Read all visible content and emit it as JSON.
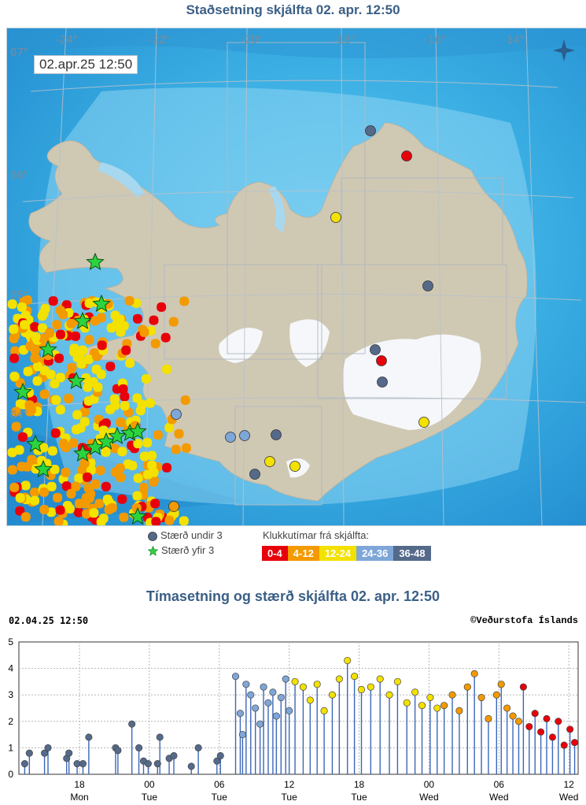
{
  "map": {
    "title": "Staðsetning skjálfta   02. apr. 12:50",
    "timestamp": "02.apr.25  12:50",
    "lat_labels": [
      "67°",
      "66°",
      "65°",
      "64°"
    ],
    "lon_labels": [
      "-24°",
      "-22°",
      "-20°",
      "-18°",
      "-16°",
      "-14°"
    ],
    "icon": "compass-icon"
  },
  "legend": {
    "under3": "Stærð undir 3",
    "over3": "Stærð yfir 3",
    "bins_title": "Klukkutímar frá skjálfta:",
    "bins": [
      {
        "label": "0-4",
        "color": "#e8000b"
      },
      {
        "label": "4-12",
        "color": "#f39a00"
      },
      {
        "label": "12-24",
        "color": "#f3e100"
      },
      {
        "label": "24-36",
        "color": "#7ea6d8"
      },
      {
        "label": "36-48",
        "color": "#556a8a"
      }
    ]
  },
  "chart": {
    "title": "Tímasetning og stærð skjálfta   02. apr. 12:50",
    "stamp_left": "02.04.25 12:50",
    "stamp_right": "©Veðurstofa Íslands"
  },
  "chart_data": {
    "type": "scatter",
    "title": "Tímasetning og stærð skjálfta   02. apr. 12:50",
    "xlabel": "",
    "ylabel": "",
    "ylim": [
      0,
      5
    ],
    "yticks": [
      "0",
      "1",
      "2",
      "3",
      "4",
      "5"
    ],
    "xticks": [
      {
        "hour": 18,
        "top": "18",
        "bottom": "Mon"
      },
      {
        "hour": 24,
        "top": "00",
        "bottom": "Tue"
      },
      {
        "hour": 30,
        "top": "06",
        "bottom": "Tue"
      },
      {
        "hour": 36,
        "top": "12",
        "bottom": "Tue"
      },
      {
        "hour": 42,
        "top": "18",
        "bottom": "Tue"
      },
      {
        "hour": 48,
        "top": "00",
        "bottom": "Wed"
      },
      {
        "hour": 54,
        "top": "06",
        "bottom": "Wed"
      },
      {
        "hour": 60,
        "top": "12",
        "bottom": "Wed"
      }
    ],
    "xlim_hours": [
      12.8,
      60.8
    ],
    "series": [
      {
        "bin": "36-48",
        "color": "#556a8a",
        "points": [
          [
            13.3,
            0.4
          ],
          [
            13.7,
            0.8
          ],
          [
            15.0,
            0.8
          ],
          [
            15.3,
            1.0
          ],
          [
            16.9,
            0.6
          ],
          [
            17.1,
            0.8
          ],
          [
            17.8,
            0.4
          ],
          [
            18.3,
            0.4
          ],
          [
            18.8,
            1.4
          ],
          [
            21.1,
            1.0
          ],
          [
            21.3,
            0.9
          ],
          [
            22.5,
            1.9
          ],
          [
            23.1,
            1.0
          ],
          [
            23.5,
            0.5
          ],
          [
            23.9,
            0.4
          ],
          [
            24.7,
            0.4
          ],
          [
            24.9,
            1.4
          ],
          [
            25.7,
            0.6
          ],
          [
            26.1,
            0.7
          ],
          [
            27.6,
            0.3
          ],
          [
            28.2,
            1.0
          ],
          [
            29.8,
            0.5
          ],
          [
            30.1,
            0.7
          ]
        ]
      },
      {
        "bin": "24-36",
        "color": "#7ea6d8",
        "points": [
          [
            31.4,
            3.7
          ],
          [
            31.8,
            2.3
          ],
          [
            32.0,
            1.5
          ],
          [
            32.3,
            3.4
          ],
          [
            32.7,
            3.0
          ],
          [
            33.1,
            2.5
          ],
          [
            33.5,
            1.9
          ],
          [
            33.8,
            3.3
          ],
          [
            34.2,
            2.7
          ],
          [
            34.6,
            3.1
          ],
          [
            34.9,
            2.2
          ],
          [
            35.3,
            2.9
          ],
          [
            35.7,
            3.6
          ],
          [
            36.0,
            2.4
          ]
        ]
      },
      {
        "bin": "12-24",
        "color": "#f3e100",
        "points": [
          [
            36.5,
            3.5
          ],
          [
            37.2,
            3.3
          ],
          [
            37.8,
            2.8
          ],
          [
            38.4,
            3.4
          ],
          [
            39.0,
            2.4
          ],
          [
            39.7,
            3.0
          ],
          [
            40.3,
            3.6
          ],
          [
            41.0,
            4.3
          ],
          [
            41.6,
            3.7
          ],
          [
            42.2,
            3.2
          ],
          [
            43.0,
            3.3
          ],
          [
            43.8,
            3.6
          ],
          [
            44.6,
            3.0
          ],
          [
            45.3,
            3.5
          ],
          [
            46.1,
            2.7
          ],
          [
            46.8,
            3.1
          ],
          [
            47.4,
            2.6
          ],
          [
            48.1,
            2.9
          ],
          [
            48.7,
            2.5
          ]
        ]
      },
      {
        "bin": "4-12",
        "color": "#f39a00",
        "points": [
          [
            49.3,
            2.6
          ],
          [
            50.0,
            3.0
          ],
          [
            50.6,
            2.4
          ],
          [
            51.3,
            3.3
          ],
          [
            51.9,
            3.8
          ],
          [
            52.5,
            2.9
          ],
          [
            53.1,
            2.1
          ],
          [
            53.8,
            3.0
          ],
          [
            54.2,
            3.4
          ],
          [
            54.7,
            2.5
          ],
          [
            55.2,
            2.2
          ],
          [
            55.7,
            2.0
          ]
        ]
      },
      {
        "bin": "0-4",
        "color": "#e8000b",
        "points": [
          [
            56.1,
            3.3
          ],
          [
            56.6,
            1.8
          ],
          [
            57.1,
            2.3
          ],
          [
            57.6,
            1.6
          ],
          [
            58.1,
            2.1
          ],
          [
            58.6,
            1.4
          ],
          [
            59.1,
            2.0
          ],
          [
            59.6,
            1.1
          ],
          [
            60.1,
            1.7
          ],
          [
            60.5,
            1.2
          ]
        ]
      }
    ]
  }
}
